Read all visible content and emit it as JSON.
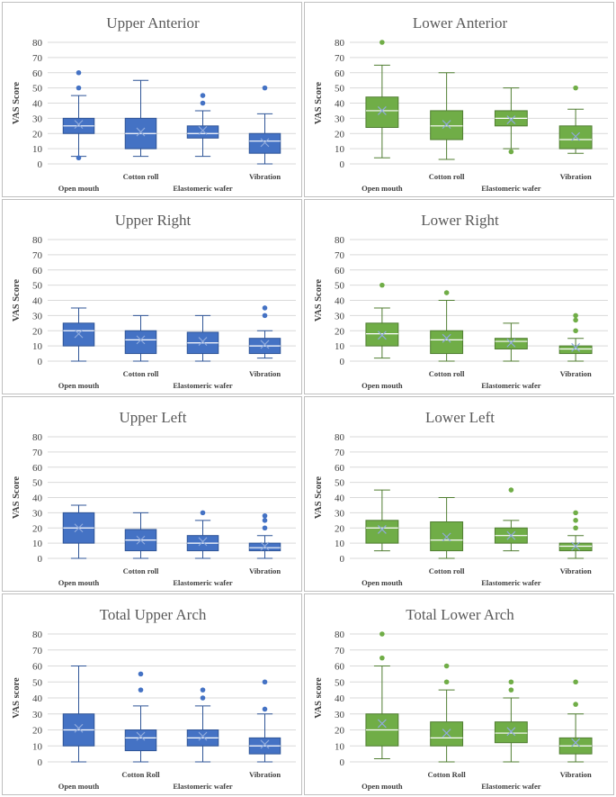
{
  "colors": {
    "blue": "#4472c4",
    "blue_edge": "#2f5597",
    "green": "#70ad47",
    "green_edge": "#507e32",
    "grid": "#d9d9d9",
    "mean_mark": "#8faadc"
  },
  "chart_data": [
    {
      "type": "box",
      "title": "Upper Anterior",
      "ylabel": "VAS Score",
      "ylim": [
        0,
        80
      ],
      "yticks": [
        0,
        10,
        20,
        30,
        40,
        50,
        60,
        70,
        80
      ],
      "color": "blue",
      "categories": [
        "Open mouth",
        "Cotton roll",
        "Elastomeric wafer",
        "Vibration"
      ],
      "boxes": [
        {
          "min": 5,
          "q1": 20,
          "median": 25,
          "q3": 30,
          "max": 45,
          "mean": 26,
          "outliers": [
            60,
            50,
            4
          ]
        },
        {
          "min": 5,
          "q1": 10,
          "median": 20,
          "q3": 30,
          "max": 55,
          "mean": 21,
          "outliers": []
        },
        {
          "min": 5,
          "q1": 17,
          "median": 20,
          "q3": 25,
          "max": 35,
          "mean": 22,
          "outliers": [
            45,
            40
          ]
        },
        {
          "min": 0,
          "q1": 7,
          "median": 15,
          "q3": 20,
          "max": 33,
          "mean": 14,
          "outliers": [
            50
          ]
        }
      ]
    },
    {
      "type": "box",
      "title": "Lower Anterior",
      "ylabel": "VAS Score",
      "ylim": [
        0,
        80
      ],
      "yticks": [
        0,
        10,
        20,
        30,
        40,
        50,
        60,
        70,
        80
      ],
      "color": "green",
      "categories": [
        "Open mouth",
        "Cotton roll",
        "Elastomeric wafer",
        "Vibration"
      ],
      "boxes": [
        {
          "min": 4,
          "q1": 24,
          "median": 35,
          "q3": 44,
          "max": 65,
          "mean": 35,
          "outliers": [
            80
          ]
        },
        {
          "min": 3,
          "q1": 16,
          "median": 25,
          "q3": 35,
          "max": 60,
          "mean": 26,
          "outliers": []
        },
        {
          "min": 10,
          "q1": 25,
          "median": 30,
          "q3": 35,
          "max": 50,
          "mean": 29,
          "outliers": [
            8
          ]
        },
        {
          "min": 7,
          "q1": 10,
          "median": 16,
          "q3": 25,
          "max": 36,
          "mean": 18,
          "outliers": [
            50
          ]
        }
      ]
    },
    {
      "type": "box",
      "title": "Upper Right",
      "ylabel": "VAS Score",
      "ylim": [
        0,
        80
      ],
      "yticks": [
        0,
        10,
        20,
        30,
        40,
        50,
        60,
        70,
        80
      ],
      "color": "blue",
      "categories": [
        "Open mouth",
        "Cotton roll",
        "Elastomeric wafer",
        "Vibration"
      ],
      "boxes": [
        {
          "min": 0,
          "q1": 10,
          "median": 20,
          "q3": 25,
          "max": 35,
          "mean": 18,
          "outliers": []
        },
        {
          "min": 0,
          "q1": 5,
          "median": 14,
          "q3": 20,
          "max": 30,
          "mean": 14,
          "outliers": []
        },
        {
          "min": 0,
          "q1": 5,
          "median": 12,
          "q3": 19,
          "max": 30,
          "mean": 13,
          "outliers": []
        },
        {
          "min": 2,
          "q1": 5,
          "median": 10,
          "q3": 15,
          "max": 20,
          "mean": 11,
          "outliers": [
            35,
            30
          ]
        }
      ]
    },
    {
      "type": "box",
      "title": "Lower Right",
      "ylabel": "VAS Score",
      "ylim": [
        0,
        80
      ],
      "yticks": [
        0,
        10,
        20,
        30,
        40,
        50,
        60,
        70,
        80
      ],
      "color": "green",
      "categories": [
        "Open mouth",
        "Cotton roll",
        "Elastomeric wafer",
        "Vibration"
      ],
      "boxes": [
        {
          "min": 2,
          "q1": 10,
          "median": 18,
          "q3": 25,
          "max": 35,
          "mean": 17,
          "outliers": [
            50
          ]
        },
        {
          "min": 0,
          "q1": 5,
          "median": 14,
          "q3": 20,
          "max": 40,
          "mean": 15,
          "outliers": [
            45
          ]
        },
        {
          "min": 0,
          "q1": 8,
          "median": 13,
          "q3": 15,
          "max": 25,
          "mean": 12,
          "outliers": []
        },
        {
          "min": 0,
          "q1": 5,
          "median": 8,
          "q3": 10,
          "max": 15,
          "mean": 9,
          "outliers": [
            30,
            27,
            20
          ]
        }
      ]
    },
    {
      "type": "box",
      "title": "Upper Left",
      "ylabel": "VAS Score",
      "ylim": [
        0,
        80
      ],
      "yticks": [
        0,
        10,
        20,
        30,
        40,
        50,
        60,
        70,
        80
      ],
      "color": "blue",
      "categories": [
        "Open mouth",
        "Cotton roll",
        "Elastomeric wafer",
        "Vibration"
      ],
      "boxes": [
        {
          "min": 0,
          "q1": 10,
          "median": 20,
          "q3": 30,
          "max": 35,
          "mean": 20,
          "outliers": []
        },
        {
          "min": 0,
          "q1": 5,
          "median": 12,
          "q3": 19,
          "max": 30,
          "mean": 12,
          "outliers": []
        },
        {
          "min": 0,
          "q1": 5,
          "median": 10,
          "q3": 15,
          "max": 25,
          "mean": 11,
          "outliers": [
            30
          ]
        },
        {
          "min": 0,
          "q1": 5,
          "median": 7,
          "q3": 10,
          "max": 15,
          "mean": 8,
          "outliers": [
            28,
            25,
            20
          ]
        }
      ]
    },
    {
      "type": "box",
      "title": "Lower Left",
      "ylabel": "VAS Score",
      "ylim": [
        0,
        80
      ],
      "yticks": [
        0,
        10,
        20,
        30,
        40,
        50,
        60,
        70,
        80
      ],
      "color": "green",
      "categories": [
        "Open mouth",
        "Cotton roll",
        "Elastomeric wafer",
        "Vibration"
      ],
      "boxes": [
        {
          "min": 5,
          "q1": 10,
          "median": 20,
          "q3": 25,
          "max": 45,
          "mean": 19,
          "outliers": []
        },
        {
          "min": 0,
          "q1": 5,
          "median": 12,
          "q3": 24,
          "max": 40,
          "mean": 14,
          "outliers": []
        },
        {
          "min": 5,
          "q1": 10,
          "median": 15,
          "q3": 20,
          "max": 25,
          "mean": 15,
          "outliers": [
            45
          ]
        },
        {
          "min": 0,
          "q1": 5,
          "median": 8,
          "q3": 10,
          "max": 15,
          "mean": 8,
          "outliers": [
            30,
            25,
            20
          ]
        }
      ]
    },
    {
      "type": "box",
      "title": "Total Upper Arch",
      "ylabel": "VAS score",
      "ylim": [
        0,
        80
      ],
      "yticks": [
        0,
        10,
        20,
        30,
        40,
        50,
        60,
        70,
        80
      ],
      "color": "blue",
      "categories": [
        "Open mouth",
        "Cotton Roll",
        "Elastomeric wafer",
        "Vibration"
      ],
      "boxes": [
        {
          "min": 0,
          "q1": 10,
          "median": 20,
          "q3": 30,
          "max": 60,
          "mean": 21,
          "outliers": []
        },
        {
          "min": 0,
          "q1": 7,
          "median": 15,
          "q3": 20,
          "max": 35,
          "mean": 16,
          "outliers": [
            55,
            45
          ]
        },
        {
          "min": 0,
          "q1": 10,
          "median": 15,
          "q3": 20,
          "max": 35,
          "mean": 16,
          "outliers": [
            45,
            40
          ]
        },
        {
          "min": 0,
          "q1": 5,
          "median": 10,
          "q3": 15,
          "max": 30,
          "mean": 11,
          "outliers": [
            50,
            33
          ]
        }
      ]
    },
    {
      "type": "box",
      "title": "Total Lower Arch",
      "ylabel": "VAS score",
      "ylim": [
        0,
        80
      ],
      "yticks": [
        0,
        10,
        20,
        30,
        40,
        50,
        60,
        70,
        80
      ],
      "color": "green",
      "categories": [
        "Open mouth",
        "Cotton Roll",
        "Elastomeric wafer",
        "Vibration"
      ],
      "boxes": [
        {
          "min": 2,
          "q1": 10,
          "median": 20,
          "q3": 30,
          "max": 60,
          "mean": 24,
          "outliers": [
            80,
            65
          ]
        },
        {
          "min": 0,
          "q1": 10,
          "median": 15,
          "q3": 25,
          "max": 45,
          "mean": 18,
          "outliers": [
            60,
            50
          ]
        },
        {
          "min": 0,
          "q1": 12,
          "median": 18,
          "q3": 25,
          "max": 40,
          "mean": 19,
          "outliers": [
            50,
            45
          ]
        },
        {
          "min": 0,
          "q1": 5,
          "median": 10,
          "q3": 15,
          "max": 30,
          "mean": 12,
          "outliers": [
            50,
            36
          ]
        }
      ]
    }
  ]
}
